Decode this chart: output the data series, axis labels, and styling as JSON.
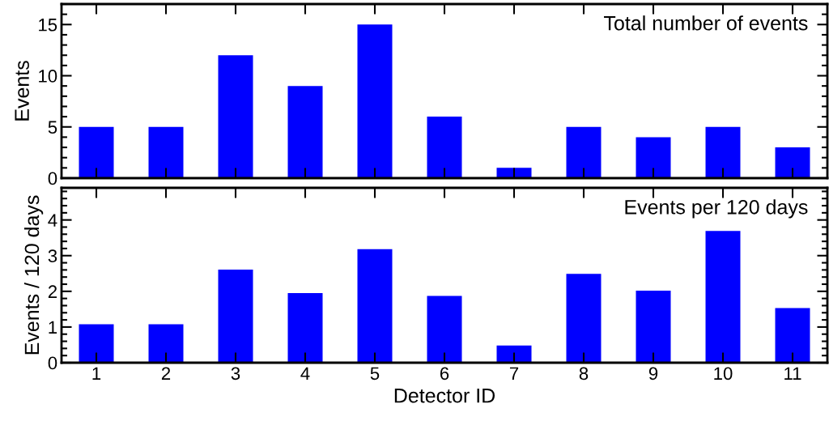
{
  "chart_data": [
    {
      "type": "bar",
      "categories": [
        "1",
        "2",
        "3",
        "4",
        "5",
        "6",
        "7",
        "8",
        "9",
        "10",
        "11"
      ],
      "ylabel": "Events",
      "color": "#0000ff",
      "values": [
        5,
        5,
        12,
        9,
        15,
        6,
        1,
        5,
        4,
        5,
        3
      ],
      "ylim": [
        0,
        17
      ],
      "yticks": [
        0,
        5,
        10,
        15
      ],
      "tick_labels": "y",
      "grid": false,
      "legend": false,
      "annotations": [
        "Total number of events"
      ]
    },
    {
      "type": "bar",
      "categories": [
        "1",
        "2",
        "3",
        "4",
        "5",
        "6",
        "7",
        "8",
        "9",
        "10",
        "11"
      ],
      "xlabel": "Detector ID",
      "ylabel": "Events / 120 days",
      "color": "#0000ff",
      "values": [
        1.08,
        1.08,
        2.61,
        1.95,
        3.18,
        1.87,
        0.48,
        2.49,
        2.02,
        3.69,
        1.53
      ],
      "ylim": [
        0,
        4.9
      ],
      "yticks": [
        0,
        1,
        2,
        3,
        4
      ],
      "grid": false,
      "legend": false,
      "annotations": [
        "Events per 120 days"
      ]
    }
  ]
}
